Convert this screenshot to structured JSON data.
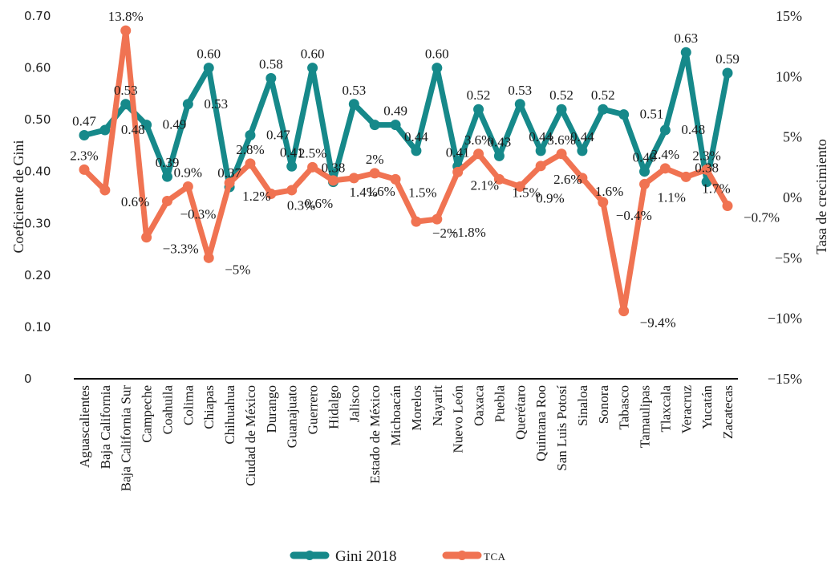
{
  "chart_data": {
    "type": "line",
    "title": "",
    "categories": [
      "Aguascalientes",
      "Baja California",
      "Baja California Sur",
      "Campeche",
      "Coahuila",
      "Colima",
      "Chiapas",
      "Chihuahua",
      "Ciudad de México",
      "Durango",
      "Guanajuato",
      "Guerrero",
      "Hidalgo",
      "Jalisco",
      "Estado de México",
      "Michoacán",
      "Morelos",
      "Nayarit",
      "Nuevo León",
      "Oaxaca",
      "Puebla",
      "Querétaro",
      "Quintana Roo",
      "San Luis Potosí",
      "Sinaloa",
      "Sonora",
      "Tabasco",
      "Tamaulipas",
      "Tlaxcala",
      "Veracruz",
      "Yucatán",
      "Zacatecas"
    ],
    "series": [
      {
        "name": "Gini 2018",
        "axis": "left",
        "color": "#16898a",
        "values": [
          0.47,
          0.48,
          0.53,
          0.49,
          0.39,
          0.53,
          0.6,
          0.37,
          0.47,
          0.58,
          0.41,
          0.6,
          0.38,
          0.53,
          0.49,
          0.49,
          0.44,
          0.6,
          0.41,
          0.52,
          0.43,
          0.53,
          0.44,
          0.52,
          0.44,
          0.52,
          0.51,
          0.4,
          0.48,
          0.63,
          0.38,
          0.59
        ],
        "labels": [
          "0.47",
          "0.48",
          "0.53",
          "0.49",
          "0.39",
          "0.53",
          "0.60",
          "0.37",
          "0.47",
          "0.58",
          "0.41",
          "0.60",
          "0.38",
          "0.53",
          "",
          "0.49",
          "0.44",
          "0.60",
          "0.41",
          "0.52",
          "0.43",
          "0.53",
          "0.44",
          "0.52",
          "0.44",
          "0.52",
          "0.51",
          "0.40",
          "0.48",
          "0.63",
          "0.38",
          "0.59"
        ]
      },
      {
        "name": "TCA",
        "axis": "right",
        "color": "#f07352",
        "values": [
          2.3,
          0.6,
          13.8,
          -3.3,
          -0.3,
          0.9,
          -5,
          1.2,
          2.8,
          0.3,
          0.6,
          2.5,
          1.4,
          1.6,
          2,
          1.5,
          -2,
          -1.8,
          2.1,
          3.6,
          1.5,
          0.9,
          2.6,
          3.6,
          1.6,
          -0.4,
          -9.4,
          1.1,
          2.4,
          1.7,
          2.3,
          -0.7
        ],
        "labels": [
          "2.3%",
          "0.6%",
          "13.8%",
          "−3.3%",
          "−0.3%",
          "0.9%",
          "−5%",
          "1.2%",
          "2.8%",
          "0.3%",
          "0.6%",
          "2.5%",
          "1.4%",
          "1.6%",
          "2%",
          "1.5%",
          "−2%",
          "−1.8%",
          "2.1%",
          "3.6%",
          "1.5%",
          "0.9%",
          "2.6%",
          "3.6%",
          "1.6%",
          "−0.4%",
          "−9.4%",
          "1.1%",
          "2.4%",
          "1.7%",
          "2.3%",
          "−0.7%"
        ]
      }
    ],
    "ylabel": "Coeficiente de Gini",
    "ylim": [
      0,
      0.7
    ],
    "yticks": [
      "0",
      "0.10",
      "0.20",
      "0.30",
      "0.40",
      "0.50",
      "0.60",
      "0.70"
    ],
    "ytick_values": [
      0,
      0.1,
      0.2,
      0.3,
      0.4,
      0.5,
      0.6,
      0.7
    ],
    "y2label": "Tasa de crecimiento",
    "y2lim": [
      -15,
      15
    ],
    "y2ticks": [
      "−15%",
      "−10%",
      "−5%",
      "0%",
      "5%",
      "10%",
      "15%"
    ],
    "y2tick_values": [
      -15,
      -10,
      -5,
      0,
      5,
      10,
      15
    ],
    "grid": false,
    "legend": {
      "position": "bottom",
      "entries": [
        "Gini 2018",
        "TCA"
      ]
    }
  }
}
